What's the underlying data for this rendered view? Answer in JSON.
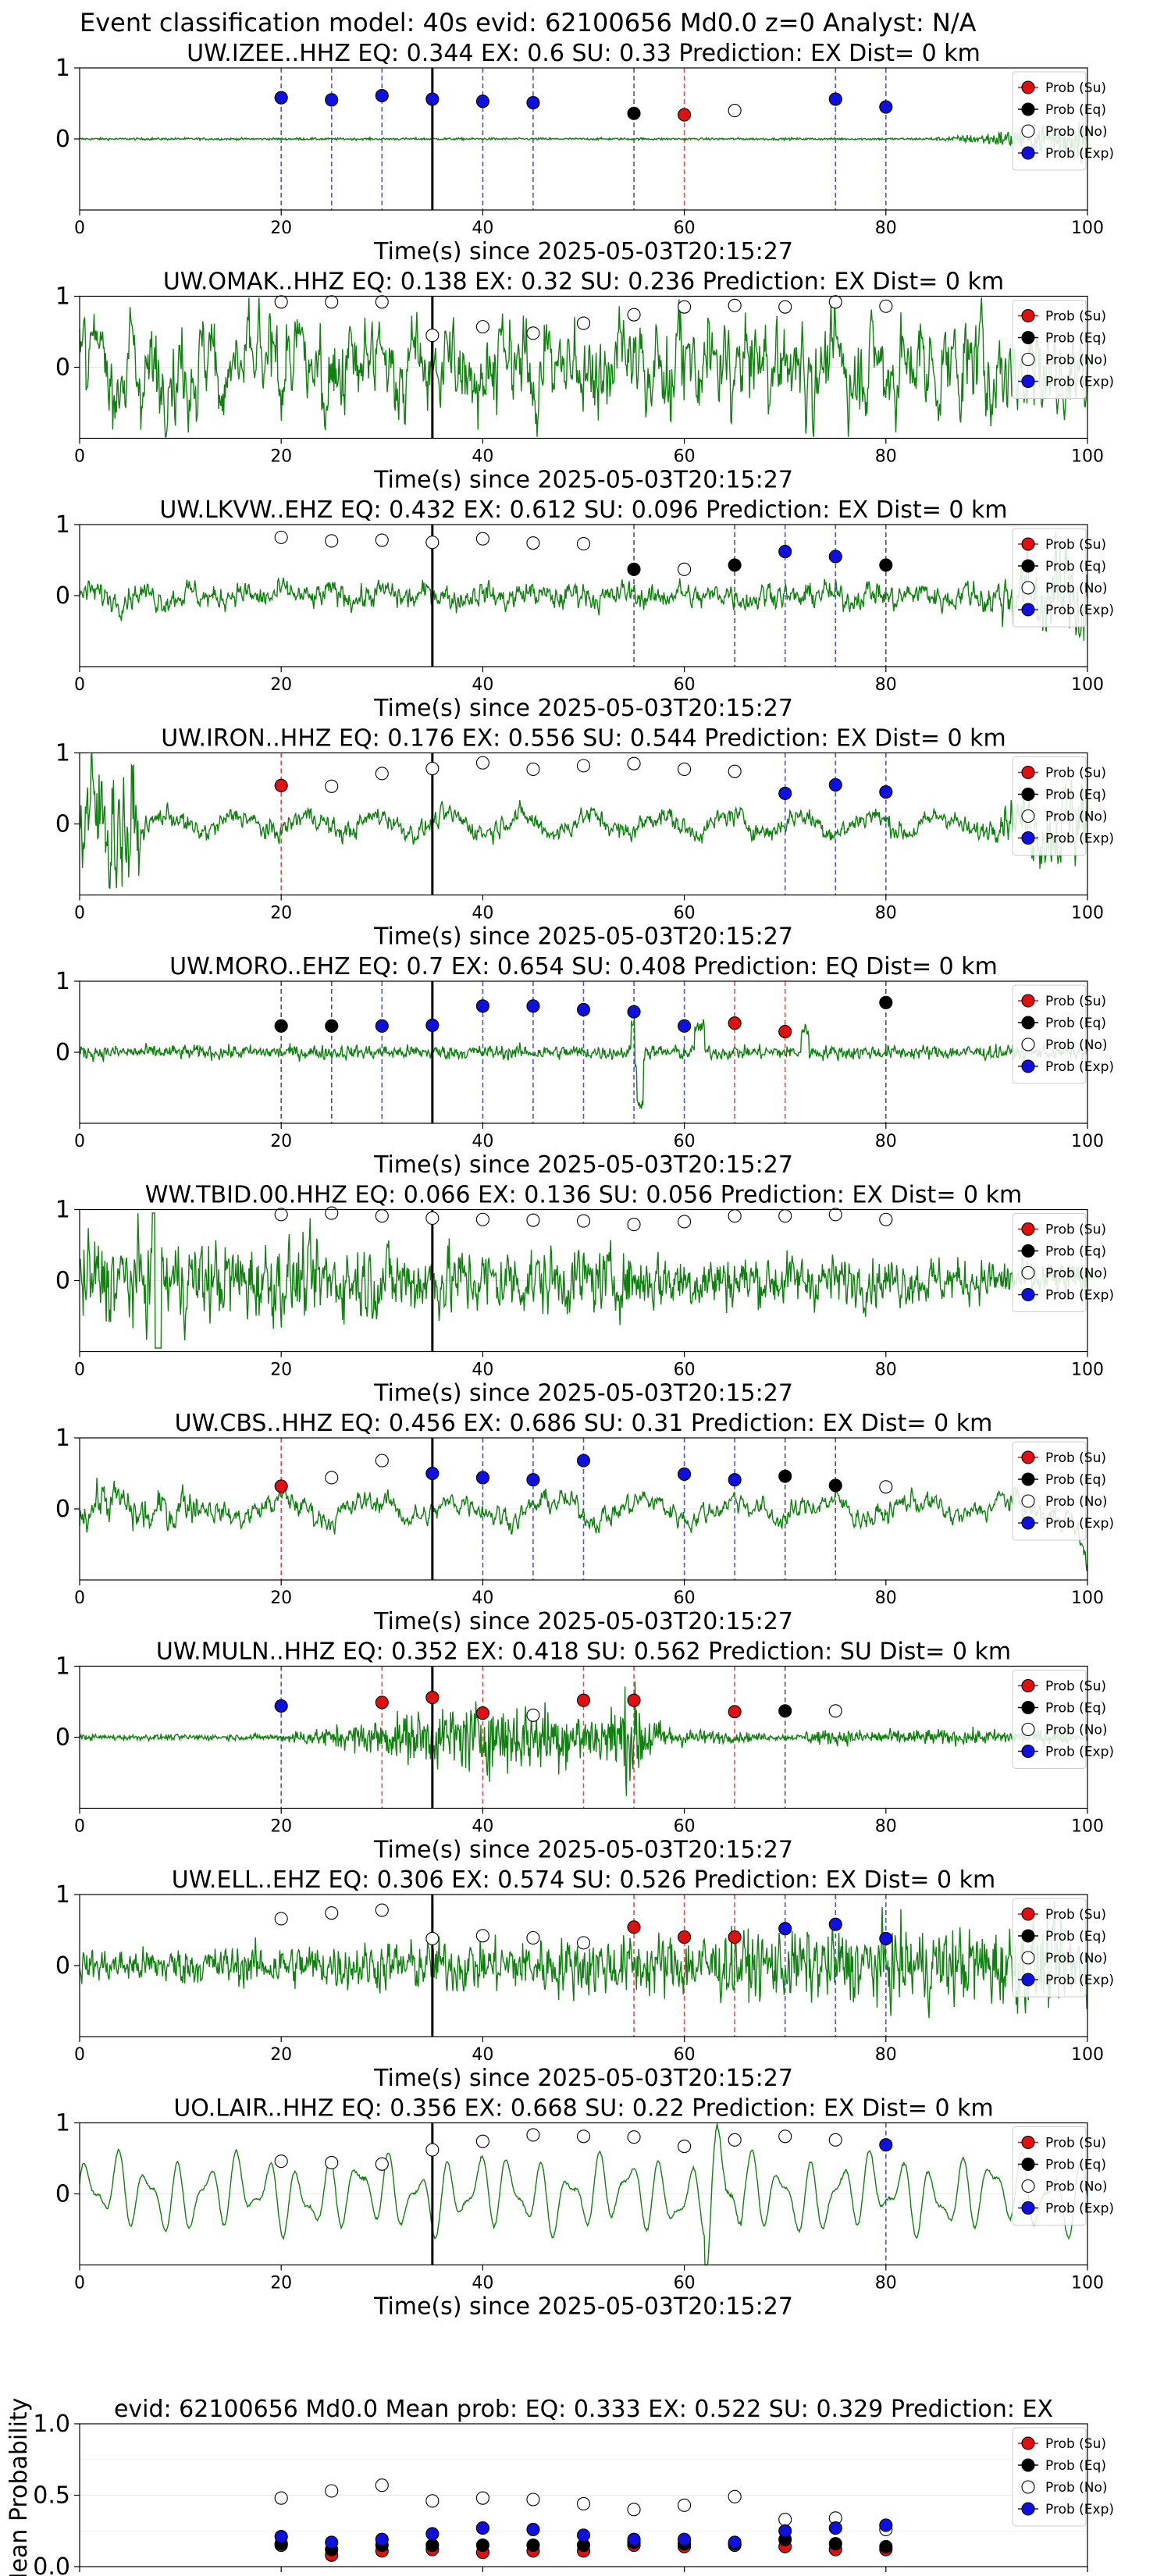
{
  "figure_title": "Event classification model: 40s evid: 62100656 Md0.0 z=0 Analyst: N/A",
  "colors": {
    "su": "#dd1111",
    "eq": "#000000",
    "no": "#ffffff",
    "exp": "#1010dd",
    "waveform": "#108010",
    "su_line": "#e74c4c",
    "eq_line": "#555555",
    "exp_line": "#4a55e0"
  },
  "legend_labels": [
    "Prob (Su)",
    "Prob (Eq)",
    "Prob (No)",
    "Prob (Exp)"
  ],
  "chart_data": [
    {
      "type": "scatter",
      "station": "UW.IZEE..HHZ",
      "title": "UW.IZEE..HHZ   EQ: 0.344  EX: 0.6  SU: 0.33   Prediction: EX    Dist= 0 km",
      "xlabel": "Time(s) since 2025-05-03T20:15:27",
      "xlim": [
        0,
        100
      ],
      "ylim": [
        -1,
        1
      ],
      "yticks": [
        0,
        1
      ],
      "xticks": [
        0,
        20,
        40,
        60,
        80,
        100
      ],
      "origin_time": 35,
      "waveform": {
        "style": "quiet_late",
        "amp": 0.02
      },
      "points": [
        {
          "t": 20,
          "p": 0.58,
          "cls": "exp"
        },
        {
          "t": 25,
          "p": 0.55,
          "cls": "exp"
        },
        {
          "t": 30,
          "p": 0.61,
          "cls": "exp"
        },
        {
          "t": 35,
          "p": 0.56,
          "cls": "exp"
        },
        {
          "t": 40,
          "p": 0.53,
          "cls": "exp"
        },
        {
          "t": 45,
          "p": 0.51,
          "cls": "exp"
        },
        {
          "t": 55,
          "p": 0.36,
          "cls": "eq"
        },
        {
          "t": 60,
          "p": 0.34,
          "cls": "su"
        },
        {
          "t": 65,
          "p": 0.4,
          "cls": "no"
        },
        {
          "t": 75,
          "p": 0.56,
          "cls": "exp"
        },
        {
          "t": 80,
          "p": 0.45,
          "cls": "exp"
        }
      ]
    },
    {
      "type": "scatter",
      "station": "UW.OMAK..HHZ",
      "title": "UW.OMAK..HHZ   EQ: 0.138  EX: 0.32  SU: 0.236   Prediction: EX    Dist= 0 km",
      "xlabel": "Time(s) since 2025-05-03T20:15:27",
      "xlim": [
        0,
        100
      ],
      "ylim": [
        -1,
        1
      ],
      "yticks": [
        0,
        1
      ],
      "xticks": [
        0,
        20,
        40,
        60,
        80,
        100
      ],
      "origin_time": 35,
      "waveform": {
        "style": "noisy",
        "amp": 0.7
      },
      "points": [
        {
          "t": 20,
          "p": 0.92,
          "cls": "no"
        },
        {
          "t": 25,
          "p": 0.92,
          "cls": "no"
        },
        {
          "t": 30,
          "p": 0.92,
          "cls": "no"
        },
        {
          "t": 35,
          "p": 0.45,
          "cls": "no"
        },
        {
          "t": 40,
          "p": 0.57,
          "cls": "no"
        },
        {
          "t": 45,
          "p": 0.48,
          "cls": "no"
        },
        {
          "t": 50,
          "p": 0.62,
          "cls": "no"
        },
        {
          "t": 55,
          "p": 0.74,
          "cls": "no"
        },
        {
          "t": 60,
          "p": 0.85,
          "cls": "no"
        },
        {
          "t": 65,
          "p": 0.87,
          "cls": "no"
        },
        {
          "t": 70,
          "p": 0.85,
          "cls": "no"
        },
        {
          "t": 75,
          "p": 0.92,
          "cls": "no"
        },
        {
          "t": 80,
          "p": 0.86,
          "cls": "no"
        }
      ]
    },
    {
      "type": "scatter",
      "station": "UW.LKVW..EHZ",
      "title": "UW.LKVW..EHZ   EQ: 0.432  EX: 0.612  SU: 0.096   Prediction: EX    Dist= 0 km",
      "xlabel": "Time(s) since 2025-05-03T20:15:27",
      "xlim": [
        0,
        100
      ],
      "ylim": [
        -1,
        1
      ],
      "yticks": [
        0,
        1
      ],
      "xticks": [
        0,
        20,
        40,
        60,
        80,
        100
      ],
      "origin_time": 35,
      "waveform": {
        "style": "moderate_late",
        "amp": 0.2
      },
      "points": [
        {
          "t": 20,
          "p": 0.82,
          "cls": "no"
        },
        {
          "t": 25,
          "p": 0.77,
          "cls": "no"
        },
        {
          "t": 30,
          "p": 0.78,
          "cls": "no"
        },
        {
          "t": 35,
          "p": 0.75,
          "cls": "no"
        },
        {
          "t": 40,
          "p": 0.8,
          "cls": "no"
        },
        {
          "t": 45,
          "p": 0.74,
          "cls": "no"
        },
        {
          "t": 50,
          "p": 0.73,
          "cls": "no"
        },
        {
          "t": 55,
          "p": 0.37,
          "cls": "eq"
        },
        {
          "t": 60,
          "p": 0.37,
          "cls": "no"
        },
        {
          "t": 65,
          "p": 0.43,
          "cls": "eq"
        },
        {
          "t": 70,
          "p": 0.62,
          "cls": "exp"
        },
        {
          "t": 75,
          "p": 0.55,
          "cls": "exp"
        },
        {
          "t": 80,
          "p": 0.43,
          "cls": "eq"
        }
      ]
    },
    {
      "type": "scatter",
      "station": "UW.IRON..HHZ",
      "title": "UW.IRON..HHZ   EQ: 0.176  EX: 0.556  SU: 0.544   Prediction: EX    Dist= 0 km",
      "xlabel": "Time(s) since 2025-05-03T20:15:27",
      "xlim": [
        0,
        100
      ],
      "ylim": [
        -1,
        1
      ],
      "yticks": [
        0,
        1
      ],
      "xticks": [
        0,
        20,
        40,
        60,
        80,
        100
      ],
      "origin_time": 35,
      "waveform": {
        "style": "early_burst",
        "amp": 0.25
      },
      "points": [
        {
          "t": 20,
          "p": 0.54,
          "cls": "su"
        },
        {
          "t": 25,
          "p": 0.53,
          "cls": "no"
        },
        {
          "t": 30,
          "p": 0.71,
          "cls": "no"
        },
        {
          "t": 35,
          "p": 0.78,
          "cls": "no"
        },
        {
          "t": 40,
          "p": 0.86,
          "cls": "no"
        },
        {
          "t": 45,
          "p": 0.77,
          "cls": "no"
        },
        {
          "t": 50,
          "p": 0.82,
          "cls": "no"
        },
        {
          "t": 55,
          "p": 0.85,
          "cls": "no"
        },
        {
          "t": 60,
          "p": 0.77,
          "cls": "no"
        },
        {
          "t": 65,
          "p": 0.74,
          "cls": "no"
        },
        {
          "t": 70,
          "p": 0.43,
          "cls": "exp"
        },
        {
          "t": 75,
          "p": 0.55,
          "cls": "exp"
        },
        {
          "t": 80,
          "p": 0.45,
          "cls": "exp"
        }
      ]
    },
    {
      "type": "scatter",
      "station": "UW.MORO..EHZ",
      "title": "UW.MORO..EHZ   EQ: 0.7  EX: 0.654  SU: 0.408   Prediction: EQ    Dist= 0 km",
      "xlabel": "Time(s) since 2025-05-03T20:15:27",
      "xlim": [
        0,
        100
      ],
      "ylim": [
        -1,
        1
      ],
      "yticks": [
        0,
        1
      ],
      "xticks": [
        0,
        20,
        40,
        60,
        80,
        100
      ],
      "origin_time": 35,
      "waveform": {
        "style": "spiky",
        "amp": 0.12
      },
      "points": [
        {
          "t": 20,
          "p": 0.37,
          "cls": "eq"
        },
        {
          "t": 25,
          "p": 0.37,
          "cls": "eq"
        },
        {
          "t": 30,
          "p": 0.37,
          "cls": "exp"
        },
        {
          "t": 35,
          "p": 0.38,
          "cls": "exp"
        },
        {
          "t": 40,
          "p": 0.65,
          "cls": "exp"
        },
        {
          "t": 45,
          "p": 0.65,
          "cls": "exp"
        },
        {
          "t": 50,
          "p": 0.6,
          "cls": "exp"
        },
        {
          "t": 55,
          "p": 0.57,
          "cls": "exp"
        },
        {
          "t": 60,
          "p": 0.37,
          "cls": "exp"
        },
        {
          "t": 65,
          "p": 0.41,
          "cls": "su"
        },
        {
          "t": 70,
          "p": 0.29,
          "cls": "su"
        },
        {
          "t": 80,
          "p": 0.7,
          "cls": "eq"
        }
      ]
    },
    {
      "type": "scatter",
      "station": "WW.TBID.00.HHZ",
      "title": "WW.TBID.00.HHZ   EQ: 0.066  EX: 0.136  SU: 0.056   Prediction: EX    Dist= 0 km",
      "xlabel": "Time(s) since 2025-05-03T20:15:27",
      "xlim": [
        0,
        100
      ],
      "ylim": [
        -1,
        1
      ],
      "yticks": [
        0,
        1
      ],
      "xticks": [
        0,
        20,
        40,
        60,
        80,
        100
      ],
      "origin_time": 35,
      "waveform": {
        "style": "noisy_decay",
        "amp": 0.6
      },
      "points": [
        {
          "t": 20,
          "p": 0.93,
          "cls": "no"
        },
        {
          "t": 25,
          "p": 0.95,
          "cls": "no"
        },
        {
          "t": 30,
          "p": 0.91,
          "cls": "no"
        },
        {
          "t": 35,
          "p": 0.88,
          "cls": "no"
        },
        {
          "t": 40,
          "p": 0.86,
          "cls": "no"
        },
        {
          "t": 45,
          "p": 0.85,
          "cls": "no"
        },
        {
          "t": 50,
          "p": 0.84,
          "cls": "no"
        },
        {
          "t": 55,
          "p": 0.79,
          "cls": "no"
        },
        {
          "t": 60,
          "p": 0.83,
          "cls": "no"
        },
        {
          "t": 65,
          "p": 0.91,
          "cls": "no"
        },
        {
          "t": 70,
          "p": 0.91,
          "cls": "no"
        },
        {
          "t": 75,
          "p": 0.93,
          "cls": "no"
        },
        {
          "t": 80,
          "p": 0.86,
          "cls": "no"
        }
      ]
    },
    {
      "type": "scatter",
      "station": "UW.CBS..HHZ",
      "title": "UW.CBS..HHZ   EQ: 0.456  EX: 0.686  SU: 0.31   Prediction: EX    Dist= 0 km",
      "xlabel": "Time(s) since 2025-05-03T20:15:27",
      "xlim": [
        0,
        100
      ],
      "ylim": [
        -1,
        1
      ],
      "yticks": [
        0,
        1
      ],
      "xticks": [
        0,
        20,
        40,
        60,
        80,
        100
      ],
      "origin_time": 35,
      "waveform": {
        "style": "moderate_early",
        "amp": 0.3
      },
      "points": [
        {
          "t": 20,
          "p": 0.32,
          "cls": "su"
        },
        {
          "t": 25,
          "p": 0.44,
          "cls": "no"
        },
        {
          "t": 30,
          "p": 0.68,
          "cls": "no"
        },
        {
          "t": 35,
          "p": 0.5,
          "cls": "exp"
        },
        {
          "t": 40,
          "p": 0.44,
          "cls": "exp"
        },
        {
          "t": 45,
          "p": 0.41,
          "cls": "exp"
        },
        {
          "t": 50,
          "p": 0.68,
          "cls": "exp"
        },
        {
          "t": 60,
          "p": 0.49,
          "cls": "exp"
        },
        {
          "t": 65,
          "p": 0.41,
          "cls": "exp"
        },
        {
          "t": 70,
          "p": 0.46,
          "cls": "eq"
        },
        {
          "t": 75,
          "p": 0.33,
          "cls": "eq"
        },
        {
          "t": 80,
          "p": 0.31,
          "cls": "no"
        }
      ]
    },
    {
      "type": "scatter",
      "station": "UW.MULN..HHZ",
      "title": "UW.MULN..HHZ   EQ: 0.352  EX: 0.418  SU: 0.562   Prediction: SU    Dist= 0 km",
      "xlabel": "Time(s) since 2025-05-03T20:15:27",
      "xlim": [
        0,
        100
      ],
      "ylim": [
        -1,
        1
      ],
      "yticks": [
        0,
        1
      ],
      "xticks": [
        0,
        20,
        40,
        60,
        80,
        100
      ],
      "origin_time": 35,
      "waveform": {
        "style": "event_mid",
        "amp": 0.5
      },
      "points": [
        {
          "t": 20,
          "p": 0.44,
          "cls": "exp"
        },
        {
          "t": 30,
          "p": 0.49,
          "cls": "su"
        },
        {
          "t": 35,
          "p": 0.56,
          "cls": "su"
        },
        {
          "t": 40,
          "p": 0.34,
          "cls": "su"
        },
        {
          "t": 45,
          "p": 0.31,
          "cls": "no"
        },
        {
          "t": 50,
          "p": 0.52,
          "cls": "su"
        },
        {
          "t": 55,
          "p": 0.52,
          "cls": "su"
        },
        {
          "t": 65,
          "p": 0.36,
          "cls": "su"
        },
        {
          "t": 70,
          "p": 0.37,
          "cls": "eq"
        },
        {
          "t": 75,
          "p": 0.37,
          "cls": "no"
        }
      ]
    },
    {
      "type": "scatter",
      "station": "UW.ELL..EHZ",
      "title": "UW.ELL..EHZ   EQ: 0.306  EX: 0.574  SU: 0.526   Prediction: EX    Dist= 0 km",
      "xlabel": "Time(s) since 2025-05-03T20:15:27",
      "xlim": [
        0,
        100
      ],
      "ylim": [
        -1,
        1
      ],
      "yticks": [
        0,
        1
      ],
      "xticks": [
        0,
        20,
        40,
        60,
        80,
        100
      ],
      "origin_time": 35,
      "waveform": {
        "style": "noisy_grow",
        "amp": 0.35
      },
      "points": [
        {
          "t": 20,
          "p": 0.66,
          "cls": "no"
        },
        {
          "t": 25,
          "p": 0.74,
          "cls": "no"
        },
        {
          "t": 30,
          "p": 0.78,
          "cls": "no"
        },
        {
          "t": 35,
          "p": 0.38,
          "cls": "no"
        },
        {
          "t": 40,
          "p": 0.42,
          "cls": "no"
        },
        {
          "t": 45,
          "p": 0.39,
          "cls": "no"
        },
        {
          "t": 50,
          "p": 0.32,
          "cls": "no"
        },
        {
          "t": 55,
          "p": 0.54,
          "cls": "su"
        },
        {
          "t": 60,
          "p": 0.4,
          "cls": "su"
        },
        {
          "t": 65,
          "p": 0.4,
          "cls": "su"
        },
        {
          "t": 70,
          "p": 0.52,
          "cls": "exp"
        },
        {
          "t": 75,
          "p": 0.58,
          "cls": "exp"
        },
        {
          "t": 80,
          "p": 0.38,
          "cls": "exp"
        }
      ]
    },
    {
      "type": "scatter",
      "station": "UO.LAIR..HHZ",
      "title": "UO.LAIR..HHZ   EQ: 0.356  EX: 0.668  SU: 0.22   Prediction: EX    Dist= 0 km",
      "xlabel": "Time(s) since 2025-05-03T20:15:27",
      "xlim": [
        0,
        100
      ],
      "ylim": [
        -1,
        1
      ],
      "yticks": [
        0,
        1
      ],
      "xticks": [
        0,
        20,
        40,
        60,
        80,
        100
      ],
      "origin_time": 35,
      "waveform": {
        "style": "oscillating",
        "amp": 0.5
      },
      "points": [
        {
          "t": 20,
          "p": 0.46,
          "cls": "no"
        },
        {
          "t": 25,
          "p": 0.44,
          "cls": "no"
        },
        {
          "t": 30,
          "p": 0.42,
          "cls": "no"
        },
        {
          "t": 35,
          "p": 0.62,
          "cls": "no"
        },
        {
          "t": 40,
          "p": 0.74,
          "cls": "no"
        },
        {
          "t": 45,
          "p": 0.83,
          "cls": "no"
        },
        {
          "t": 50,
          "p": 0.81,
          "cls": "no"
        },
        {
          "t": 55,
          "p": 0.8,
          "cls": "no"
        },
        {
          "t": 60,
          "p": 0.67,
          "cls": "no"
        },
        {
          "t": 65,
          "p": 0.76,
          "cls": "no"
        },
        {
          "t": 70,
          "p": 0.81,
          "cls": "no"
        },
        {
          "t": 75,
          "p": 0.76,
          "cls": "no"
        },
        {
          "t": 80,
          "p": 0.69,
          "cls": "exp"
        }
      ]
    },
    {
      "type": "scatter",
      "station": "",
      "title": "evid: 62100656   Md0.0   Mean prob:   EQ: 0.333  EX: 0.522  SU: 0.329   Prediction: EX",
      "xlabel": "",
      "ylabel": "Mean Probability",
      "xlim": [
        0,
        100
      ],
      "ylim": [
        0,
        1
      ],
      "yticks": [
        0.0,
        0.5,
        1.0
      ],
      "ytick_labels": [
        "0.0",
        "0.5",
        "1.0"
      ],
      "xticks": [
        0,
        20,
        40,
        60,
        80,
        100
      ],
      "series": [
        {
          "name": "Prob (Su)",
          "cls": "su",
          "x": [
            20,
            25,
            30,
            35,
            40,
            45,
            50,
            55,
            60,
            65,
            70,
            75,
            80
          ],
          "y": [
            0.15,
            0.08,
            0.11,
            0.12,
            0.1,
            0.11,
            0.11,
            0.15,
            0.14,
            0.15,
            0.14,
            0.12,
            0.12
          ]
        },
        {
          "name": "Prob (Eq)",
          "cls": "eq",
          "x": [
            20,
            25,
            30,
            35,
            40,
            45,
            50,
            55,
            60,
            65,
            70,
            75,
            80
          ],
          "y": [
            0.16,
            0.12,
            0.15,
            0.15,
            0.15,
            0.15,
            0.15,
            0.17,
            0.16,
            0.16,
            0.19,
            0.16,
            0.14
          ]
        },
        {
          "name": "Prob (No)",
          "cls": "no",
          "x": [
            20,
            25,
            30,
            35,
            40,
            45,
            50,
            55,
            60,
            65,
            70,
            75,
            80
          ],
          "y": [
            0.48,
            0.53,
            0.57,
            0.46,
            0.48,
            0.47,
            0.44,
            0.4,
            0.43,
            0.49,
            0.33,
            0.34,
            0.26
          ]
        },
        {
          "name": "Prob (Exp)",
          "cls": "exp",
          "x": [
            20,
            25,
            30,
            35,
            40,
            45,
            50,
            55,
            60,
            65,
            70,
            75,
            80
          ],
          "y": [
            0.21,
            0.17,
            0.19,
            0.23,
            0.27,
            0.26,
            0.22,
            0.19,
            0.19,
            0.17,
            0.25,
            0.27,
            0.29
          ]
        }
      ]
    }
  ]
}
